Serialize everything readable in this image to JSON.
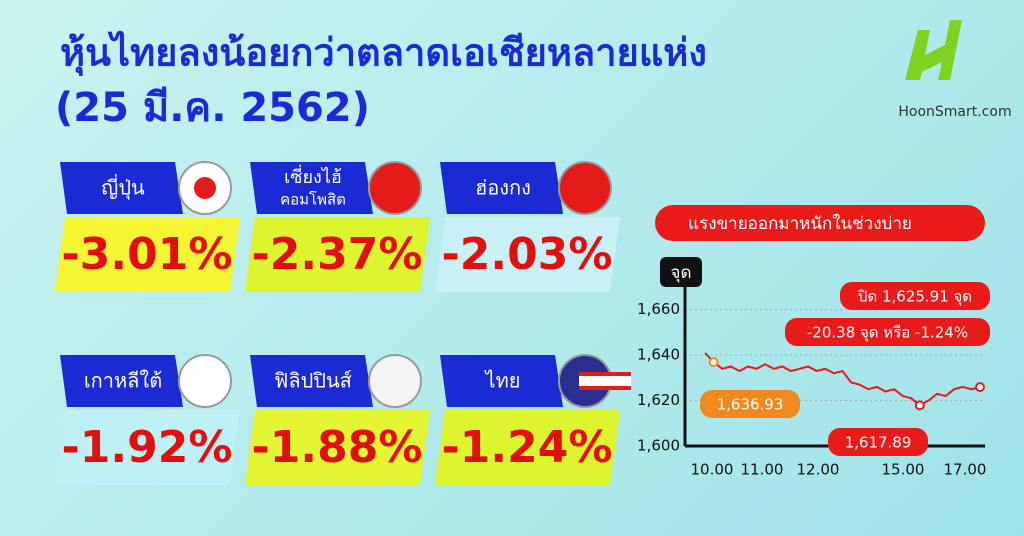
{
  "header": {
    "title": "หุ้นไทยลงน้อยกว่าตลาดเอเชียหลายแห่ง",
    "date": "(25 มี.ค. 2562)",
    "logo": "HoonSmart.com"
  },
  "markets": [
    {
      "name": "ญี่ปุ่น",
      "change": "-3.01%"
    },
    {
      "name": "เซี่ยงไฮ้",
      "subname": "คอมโพสิต",
      "change": "-2.37%"
    },
    {
      "name": "ฮ่องกง",
      "change": "-2.03%"
    },
    {
      "name": "เกาหลีใต้",
      "change": "-1.92%"
    },
    {
      "name": "ฟิลิปปินส์",
      "change": "-1.88%"
    },
    {
      "name": "ไทย",
      "change": "-1.24%"
    }
  ],
  "chart": {
    "type": "line",
    "title": "แรงขายออกมาหนักในช่วงบ่าย",
    "y_label": "จุด",
    "xticks": [
      "10.00",
      "11.00",
      "12.00",
      "15.00",
      "17.00"
    ],
    "ylim": [
      1600,
      1670
    ],
    "yticks": [
      {
        "value": 1600,
        "label": "1,600"
      },
      {
        "value": 1620,
        "label": "1,620"
      },
      {
        "value": 1640,
        "label": "1,640"
      },
      {
        "value": 1660,
        "label": "1,660"
      }
    ],
    "values": [
      1641,
      1636.93,
      1634,
      1635,
      1633,
      1635,
      1634,
      1636,
      1634,
      1635,
      1633,
      1634,
      1635,
      1633,
      1634,
      1632,
      1633,
      1628,
      1627,
      1625,
      1626,
      1624,
      1625,
      1622,
      1621,
      1617.89,
      1620,
      1623,
      1622,
      1625,
      1626,
      1625,
      1625.91
    ],
    "annotations": {
      "open": "1,636.93",
      "low": "1,617.89",
      "close": "ปิด 1,625.91 จุด",
      "change": "-20.38 จุด หรือ -1.24%"
    }
  }
}
